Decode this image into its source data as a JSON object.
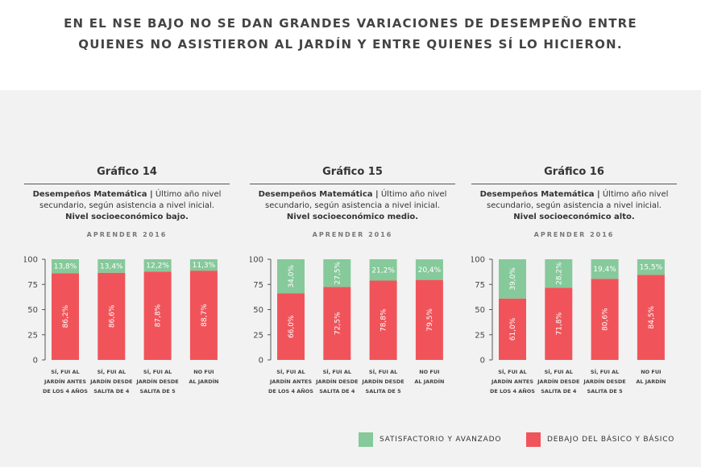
{
  "header": {
    "title": [
      "EN EL NSE BAJO NO SE DAN GRANDES VARIACIONES DE DESEMPEÑO ENTRE",
      "QUIENES NO ASISTIERON AL JARDÍN Y ENTRE QUIENES SÍ LO HICIERON."
    ]
  },
  "chart_data": [
    {
      "type": "stacked-bar",
      "title": "Gráfico 14",
      "subtitle": [
        "Desempeños Matemática |",
        "Último año nivel secundario, según asistencia a nivel inicial.",
        "Nivel socioeconómico bajo."
      ],
      "source": "APRENDER 2016",
      "categories": [
        [
          "SÍ, FUI AL",
          "JARDÍN ANTES",
          "DE LOS 4 AÑOS"
        ],
        [
          "SÍ, FUI AL",
          "JARDÍN DESDE",
          "SALITA DE 4"
        ],
        [
          "SÍ, FUI AL",
          "JARDÍN DESDE",
          "SALITA DE 5"
        ],
        [
          "NO FUI",
          "AL JARDÍN"
        ]
      ],
      "series": [
        {
          "name": "SATISFACTORIO Y AVANZADO",
          "color": "#86c99a",
          "values": [
            13.8,
            13.4,
            12.2,
            11.3
          ],
          "value_labels": [
            "13,8%",
            "13,4%",
            "12,2%",
            "11,3%"
          ]
        },
        {
          "name": "DEBAJO DEL BÁSICO Y BÁSICO",
          "color": "#f0545a",
          "values": [
            86.2,
            86.6,
            87.8,
            88.7
          ],
          "value_labels": [
            "86,2%",
            "86,6%",
            "87,8%",
            "88,7%"
          ]
        }
      ],
      "ylim": [
        0,
        100
      ],
      "yticks": [
        0,
        25,
        50,
        75,
        100
      ]
    },
    {
      "type": "stacked-bar",
      "title": "Gráfico 15",
      "subtitle": [
        "Desempeños Matemática |",
        "Último año nivel secundario, según asistencia a nivel inicial.",
        "Nivel socioeconómico medio."
      ],
      "source": "APRENDER 2016",
      "categories": [
        [
          "SÍ, FUI AL",
          "JARDÍN ANTES",
          "DE LOS 4 AÑOS"
        ],
        [
          "SÍ, FUI AL",
          "JARDÍN DESDE",
          "SALITA DE 4"
        ],
        [
          "SÍ, FUI AL",
          "JARDÍN DESDE",
          "SALITA DE 5"
        ],
        [
          "NO FUI",
          "AL JARDÍN"
        ]
      ],
      "series": [
        {
          "name": "SATISFACTORIO Y AVANZADO",
          "color": "#86c99a",
          "values": [
            34.0,
            27.5,
            21.2,
            20.4
          ],
          "value_labels": [
            "34,0%",
            "27,5%",
            "21,2%",
            "20,4%"
          ]
        },
        {
          "name": "DEBAJO DEL BÁSICO Y BÁSICO",
          "color": "#f0545a",
          "values": [
            66.0,
            72.5,
            78.8,
            79.5
          ],
          "value_labels": [
            "66,0%",
            "72,5%",
            "78,8%",
            "79,5%"
          ]
        }
      ],
      "ylim": [
        0,
        100
      ],
      "yticks": [
        0,
        25,
        50,
        75,
        100
      ]
    },
    {
      "type": "stacked-bar",
      "title": "Gráfico 16",
      "subtitle": [
        "Desempeños Matemática |",
        "Último año nivel secundario, según asistencia a nivel inicial.",
        "Nivel socioeconómico alto."
      ],
      "source": "APRENDER 2016",
      "categories": [
        [
          "SÍ, FUI AL",
          "JARDÍN ANTES",
          "DE LOS 4 AÑOS"
        ],
        [
          "SÍ, FUI AL",
          "JARDÍN DESDE",
          "SALITA DE 4"
        ],
        [
          "SÍ, FUI AL",
          "JARDÍN DESDE",
          "SALITA DE 5"
        ],
        [
          "NO FUI",
          "AL JARDÍN"
        ]
      ],
      "series": [
        {
          "name": "SATISFACTORIO Y AVANZADO",
          "color": "#86c99a",
          "values": [
            39.0,
            28.2,
            19.4,
            15.5
          ],
          "value_labels": [
            "39,0%",
            "28,2%",
            "19,4%",
            "15,5%"
          ]
        },
        {
          "name": "DEBAJO DEL BÁSICO Y BÁSICO",
          "color": "#f0545a",
          "values": [
            61.0,
            71.8,
            80.6,
            84.5
          ],
          "value_labels": [
            "61,0%",
            "71,8%",
            "80,6%",
            "84,5%"
          ]
        }
      ],
      "ylim": [
        0,
        100
      ],
      "yticks": [
        0,
        25,
        50,
        75,
        100
      ]
    }
  ]
}
